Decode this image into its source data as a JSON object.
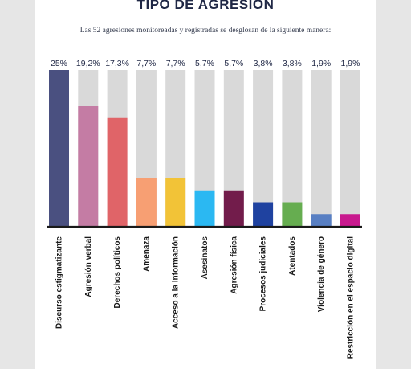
{
  "title": "TIPO DE AGRESIÓN",
  "subtitle": "Las 52 agresiones monitoreadas y registradas se desglosan de la siguiente manera:",
  "chart_data": {
    "type": "bar",
    "unit": "%",
    "ylim": [
      0,
      25
    ],
    "categories": [
      "Discurso estigmatizante",
      "Agresión verbal",
      "Derechos políticos",
      "Amenaza",
      "Acceso a la información",
      "Asesinatos",
      "Agresión física",
      "Procesos judiciales",
      "Atentados",
      "Violencia de género",
      "Restricción en el espacio digital"
    ],
    "values": [
      25,
      19.2,
      17.3,
      7.7,
      7.7,
      5.7,
      5.7,
      3.8,
      3.8,
      1.9,
      1.9
    ],
    "value_labels": [
      "25%",
      "19,2%",
      "17,3%",
      "7,7%",
      "7,7%",
      "5,7%",
      "5,7%",
      "3,8%",
      "3,8%",
      "1,9%",
      "1,9%"
    ],
    "colors": [
      "#4a5080",
      "#c47ca4",
      "#e06468",
      "#f79f73",
      "#f2c337",
      "#2bb8f2",
      "#721c4b",
      "#1f42a0",
      "#66ad50",
      "#587fc3",
      "#c8198e"
    ],
    "track_color": "#d9d9d9",
    "grid": false,
    "legend": "none"
  }
}
